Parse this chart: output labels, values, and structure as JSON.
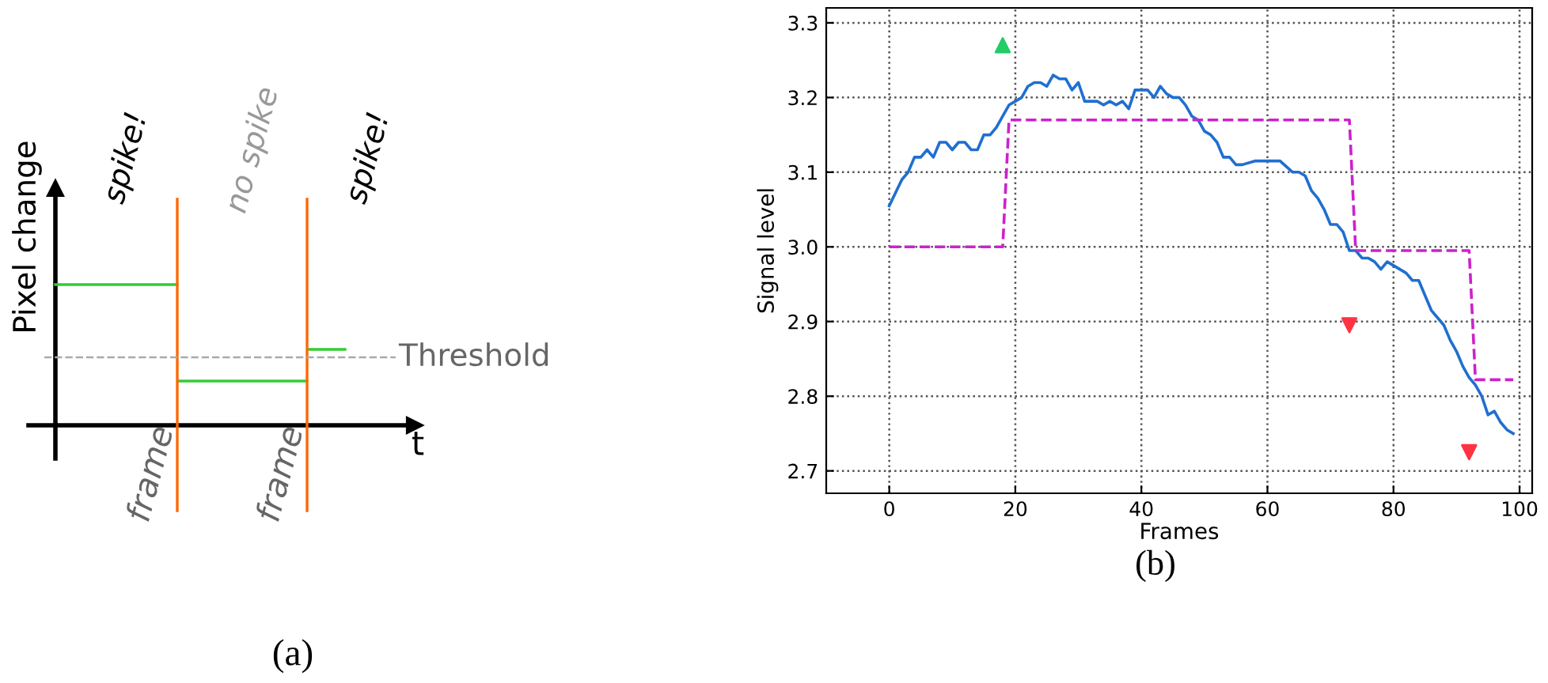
{
  "chart_data": [
    {
      "type": "other",
      "xlabel": "t",
      "ylabel": "Pixel change",
      "annotations": [
        "spike!",
        "no spike",
        "spike!",
        "frame",
        "frame",
        "Threshold",
        "(a)"
      ]
    },
    {
      "type": "line",
      "xlabel": "Frames",
      "ylabel": "Signal level",
      "grid": true,
      "xlim": [
        -10,
        102
      ],
      "xticks": [
        0,
        20,
        40,
        60,
        80,
        100
      ],
      "ylim": [
        2.67,
        3.32
      ],
      "yticks": [
        {
          "value": 2.7,
          "label": "2.7"
        },
        {
          "value": 2.8,
          "label": "2.8"
        },
        {
          "value": 2.9,
          "label": "2.9"
        },
        {
          "value": 3,
          "label": "3.0"
        },
        {
          "value": 3.1,
          "label": "3.1"
        },
        {
          "value": 3.2,
          "label": "3.2"
        },
        {
          "value": 3.3,
          "label": "3.3"
        }
      ],
      "series": [
        {
          "type": "line",
          "color": "#1f6fd0",
          "line_style": "solid",
          "marker": "none",
          "x": [
            0,
            2,
            3,
            4,
            5,
            6,
            7,
            8,
            9,
            10,
            11,
            12,
            13,
            14,
            15,
            16,
            17,
            18,
            19,
            20,
            21,
            22,
            23,
            24,
            25,
            26,
            27,
            28,
            29,
            30,
            31,
            32,
            33,
            34,
            35,
            36,
            37,
            38,
            39,
            40,
            41,
            42,
            43,
            44,
            45,
            46,
            47,
            48,
            49,
            50,
            51,
            52,
            53,
            54,
            55,
            56,
            58,
            60,
            62,
            64,
            65,
            66,
            67,
            68,
            69,
            70,
            71,
            72,
            73,
            74,
            75,
            76,
            77,
            78,
            79,
            80,
            81,
            82,
            83,
            84,
            85,
            86,
            87,
            88,
            89,
            90,
            91,
            92,
            93,
            94,
            95,
            96,
            97,
            98,
            99
          ],
          "values": [
            3.055,
            3.09,
            3.1,
            3.12,
            3.12,
            3.13,
            3.12,
            3.14,
            3.14,
            3.13,
            3.14,
            3.14,
            3.13,
            3.13,
            3.15,
            3.15,
            3.16,
            3.175,
            3.19,
            3.195,
            3.2,
            3.215,
            3.22,
            3.22,
            3.215,
            3.23,
            3.225,
            3.225,
            3.21,
            3.22,
            3.195,
            3.195,
            3.195,
            3.19,
            3.195,
            3.19,
            3.195,
            3.185,
            3.21,
            3.21,
            3.21,
            3.2,
            3.215,
            3.205,
            3.2,
            3.2,
            3.19,
            3.175,
            3.17,
            3.155,
            3.15,
            3.14,
            3.12,
            3.12,
            3.11,
            3.11,
            3.115,
            3.115,
            3.115,
            3.1,
            3.1,
            3.095,
            3.075,
            3.065,
            3.05,
            3.03,
            3.03,
            3.02,
            2.995,
            2.995,
            2.985,
            2.985,
            2.98,
            2.97,
            2.98,
            2.975,
            2.97,
            2.965,
            2.955,
            2.955,
            2.935,
            2.915,
            2.905,
            2.895,
            2.875,
            2.86,
            2.84,
            2.825,
            2.815,
            2.8,
            2.775,
            2.78,
            2.765,
            2.755,
            2.75
          ]
        },
        {
          "type": "line",
          "color": "#cc22cc",
          "line_style": "dashed",
          "marker": "none",
          "x": [
            0,
            18,
            19,
            73,
            74,
            92,
            93,
            99
          ],
          "values": [
            3.0,
            3.0,
            3.17,
            3.17,
            2.995,
            2.995,
            2.822,
            2.822
          ]
        },
        {
          "type": "scatter",
          "color": "#22cc66",
          "marker": "triangle",
          "x": [
            18
          ],
          "values": [
            3.27
          ]
        },
        {
          "type": "scatter",
          "color": "#ff3344",
          "marker": "triangle_down",
          "x": [
            73,
            92
          ],
          "values": [
            2.895,
            2.725
          ]
        }
      ],
      "annotations": [
        "(b)"
      ]
    }
  ]
}
